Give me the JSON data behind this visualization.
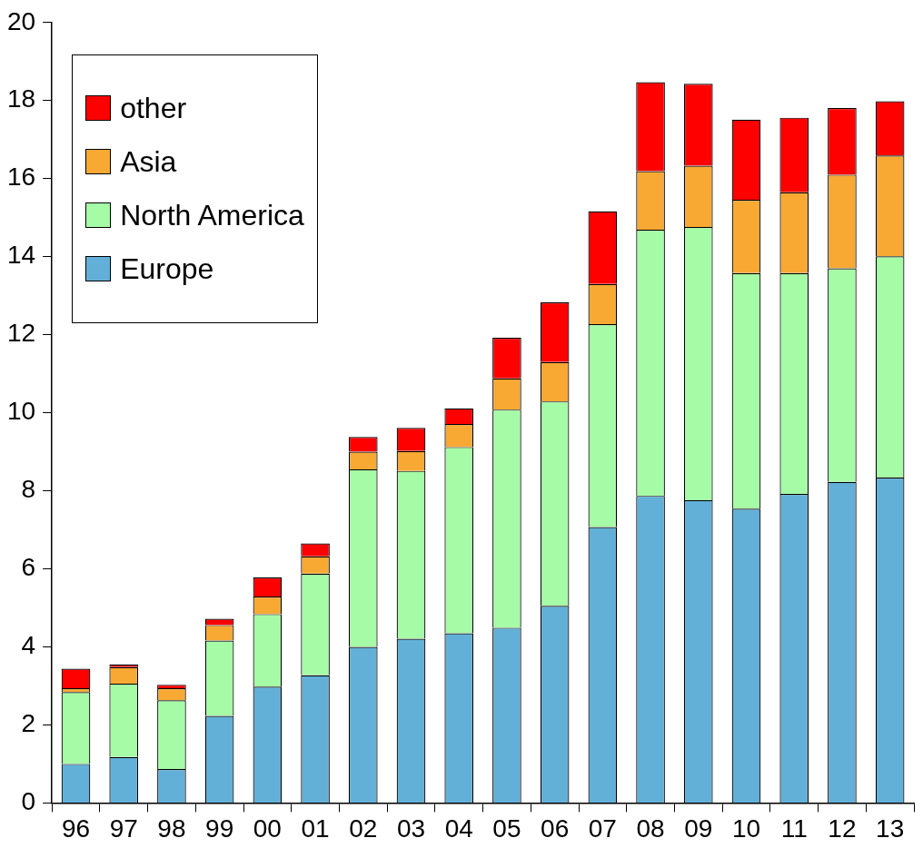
{
  "chart_data": {
    "type": "bar",
    "stacked": true,
    "categories": [
      "96",
      "97",
      "98",
      "99",
      "00",
      "01",
      "02",
      "03",
      "04",
      "05",
      "06",
      "07",
      "08",
      "09",
      "10",
      "11",
      "12",
      "13"
    ],
    "series": [
      {
        "name": "Europe",
        "color": "#62b0d8",
        "values": [
          1.0,
          1.18,
          0.87,
          2.23,
          2.98,
          3.27,
          4.0,
          4.21,
          4.35,
          4.49,
          5.05,
          7.07,
          7.87,
          7.76,
          7.54,
          7.92,
          8.23,
          8.34
        ]
      },
      {
        "name": "North America",
        "color": "#a6fba6",
        "values": [
          1.84,
          1.88,
          1.76,
          1.93,
          1.86,
          2.61,
          4.55,
          4.3,
          4.77,
          5.59,
          5.24,
          5.2,
          6.82,
          7.0,
          6.04,
          5.66,
          5.47,
          5.67
        ]
      },
      {
        "name": "Asia",
        "color": "#f7a934",
        "values": [
          0.1,
          0.42,
          0.31,
          0.4,
          0.45,
          0.44,
          0.45,
          0.51,
          0.59,
          0.8,
          1.01,
          1.03,
          1.5,
          1.57,
          1.88,
          2.07,
          2.4,
          2.58
        ]
      },
      {
        "name": "other",
        "color": "#ff0000",
        "values": [
          0.5,
          0.07,
          0.09,
          0.16,
          0.49,
          0.33,
          0.38,
          0.59,
          0.4,
          1.04,
          1.53,
          1.86,
          2.28,
          2.1,
          2.05,
          1.91,
          1.71,
          1.39
        ]
      }
    ],
    "ylim": [
      0,
      20
    ],
    "yticks": [
      0,
      2,
      4,
      6,
      8,
      10,
      12,
      14,
      16,
      18,
      20
    ],
    "grid": false,
    "legend": "top left"
  }
}
